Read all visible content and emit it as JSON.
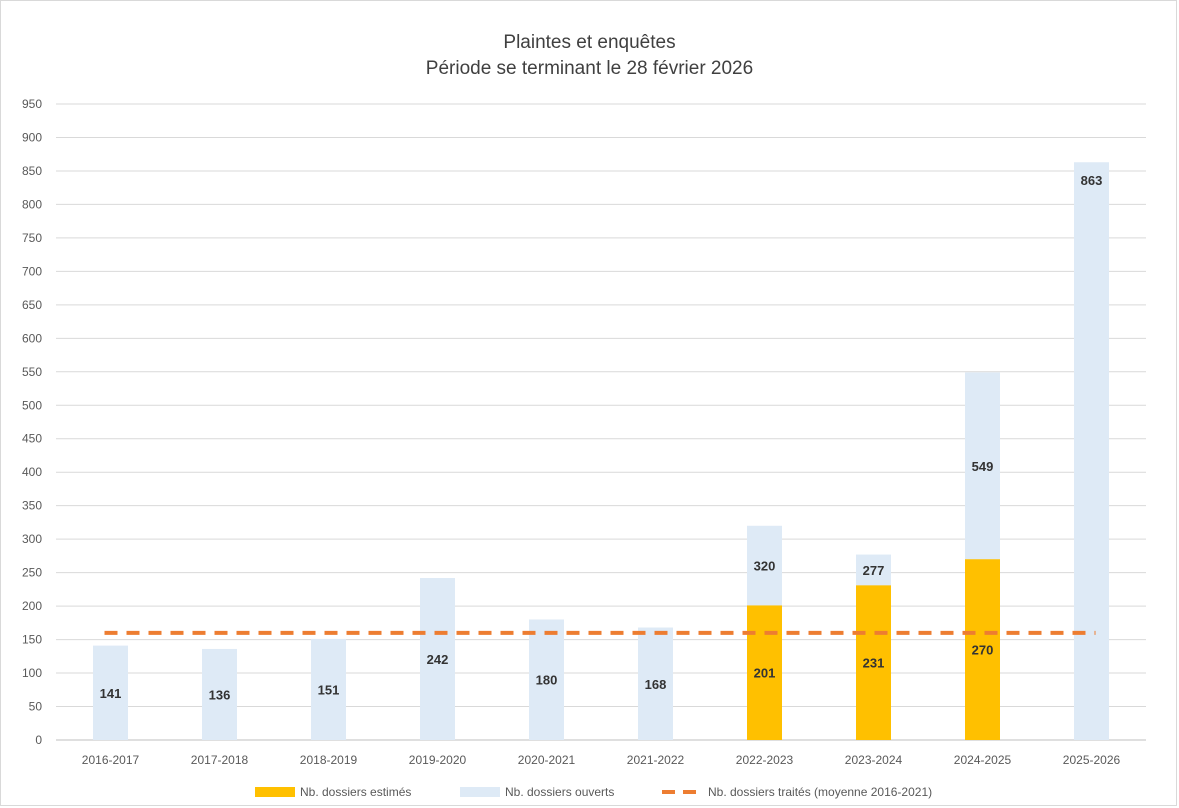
{
  "chart_data": {
    "type": "bar",
    "title": "Plaintes et enquêtes",
    "subtitle": "Période se terminant le 28 février 2026",
    "categories": [
      "2016-2017",
      "2017-2018",
      "2018-2019",
      "2019-2020",
      "2020-2021",
      "2021-2022",
      "2022-2023",
      "2023-2024",
      "2024-2025",
      "2025-2026"
    ],
    "series": [
      {
        "name": "Nb. dossiers estimés",
        "type": "bar",
        "color": "#FFC000",
        "values": [
          null,
          null,
          null,
          null,
          null,
          null,
          201,
          231,
          270,
          null
        ]
      },
      {
        "name": "Nb. dossiers ouverts",
        "type": "bar",
        "color": "#DEEAF6",
        "values": [
          141,
          136,
          151,
          242,
          180,
          168,
          320,
          277,
          549,
          863
        ]
      },
      {
        "name": "Nb. dossiers traités (moyenne 2016-2021)",
        "type": "line",
        "style": "dashed",
        "color": "#ED7D31",
        "value": 160
      }
    ],
    "ylim": [
      0,
      950
    ],
    "ytick_step": 50,
    "yticks": [
      "0",
      "50",
      "100",
      "150",
      "200",
      "250",
      "300",
      "350",
      "400",
      "450",
      "500",
      "550",
      "600",
      "650",
      "700",
      "750",
      "800",
      "850",
      "900",
      "950"
    ],
    "grid": true,
    "legend_position": "bottom"
  }
}
